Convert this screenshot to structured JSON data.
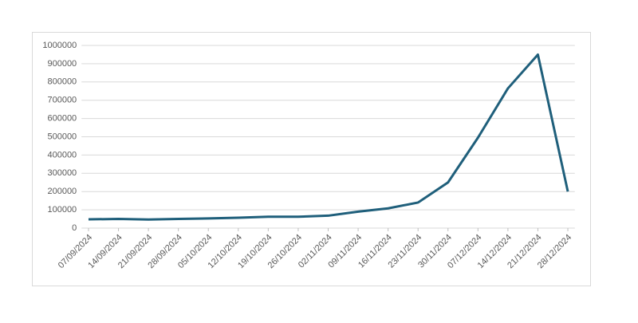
{
  "chart_data": {
    "type": "line",
    "categories": [
      "07/09/2024",
      "14/09/2024",
      "21/09/2024",
      "28/09/2024",
      "05/10/2024",
      "12/10/2024",
      "19/10/2024",
      "26/10/2024",
      "02/11/2024",
      "09/11/2024",
      "16/11/2024",
      "23/11/2024",
      "30/11/2024",
      "07/12/2024",
      "14/12/2024",
      "21/12/2024",
      "28/12/2024"
    ],
    "values": [
      48000,
      50000,
      47000,
      50000,
      53000,
      57000,
      62000,
      62000,
      68000,
      90000,
      108000,
      140000,
      250000,
      495000,
      765000,
      950000,
      200000
    ],
    "color": "#1f5f7b",
    "ylim": [
      0,
      1000000
    ],
    "yticks": [
      0,
      100000,
      200000,
      300000,
      400000,
      500000,
      600000,
      700000,
      800000,
      900000,
      1000000
    ],
    "grid": true
  }
}
